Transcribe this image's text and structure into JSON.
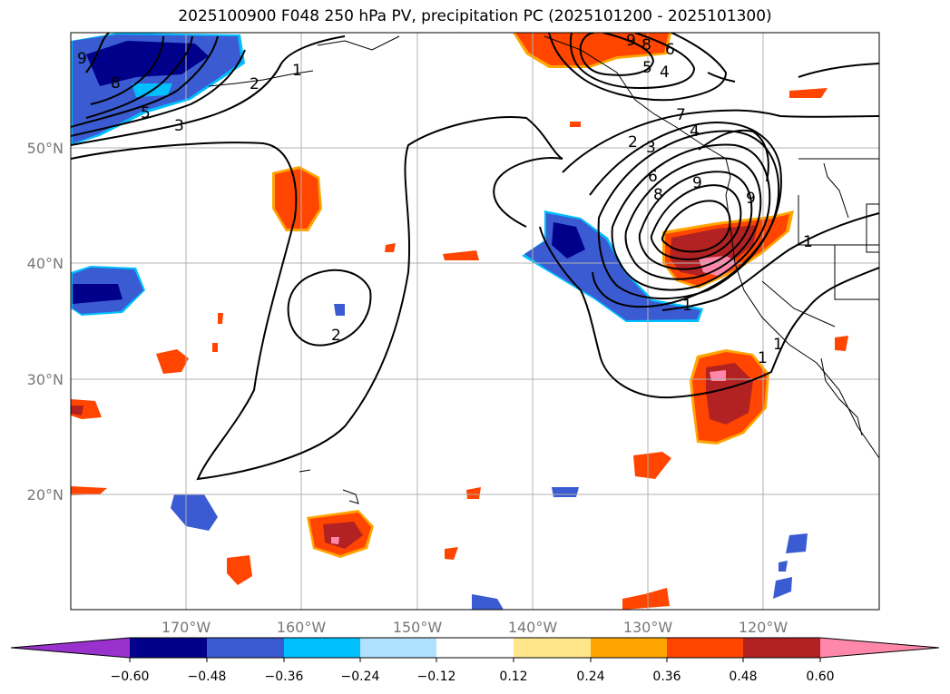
{
  "title": "2025100900 F048 250 hPa PV, precipitation PC (2025101200 - 2025101300)",
  "map": {
    "lat_labels": [
      "50°N",
      "40°N",
      "30°N",
      "20°N"
    ],
    "lon_labels": [
      "170°W",
      "160°W",
      "150°W",
      "140°W",
      "130°W",
      "120°W"
    ],
    "lon_range": [
      -180,
      -110
    ],
    "lat_range": [
      10,
      60
    ]
  },
  "colorbar": {
    "tick_labels": [
      "−0.60",
      "−0.48",
      "−0.36",
      "−0.24",
      "−0.12",
      "0.12",
      "0.24",
      "0.36",
      "0.48",
      "0.60"
    ],
    "levels": [
      -0.6,
      -0.48,
      -0.36,
      -0.24,
      -0.12,
      0.12,
      0.24,
      0.36,
      0.48,
      0.6
    ],
    "colors": [
      "#9932cc",
      "#00008b",
      "#3a5bd1",
      "#00bfff",
      "#b0e2ff",
      "#ffffff",
      "#ffe68a",
      "#ffa500",
      "#ff4500",
      "#b22222",
      "#ff88aa"
    ]
  },
  "contour_labels": [
    "9",
    "8",
    "5",
    "3",
    "2",
    "1",
    "9",
    "8",
    "6",
    "5",
    "4",
    "2",
    "3",
    "6",
    "8",
    "9",
    "9",
    "1",
    "1",
    "1",
    "1",
    "2",
    "4",
    "7"
  ]
}
